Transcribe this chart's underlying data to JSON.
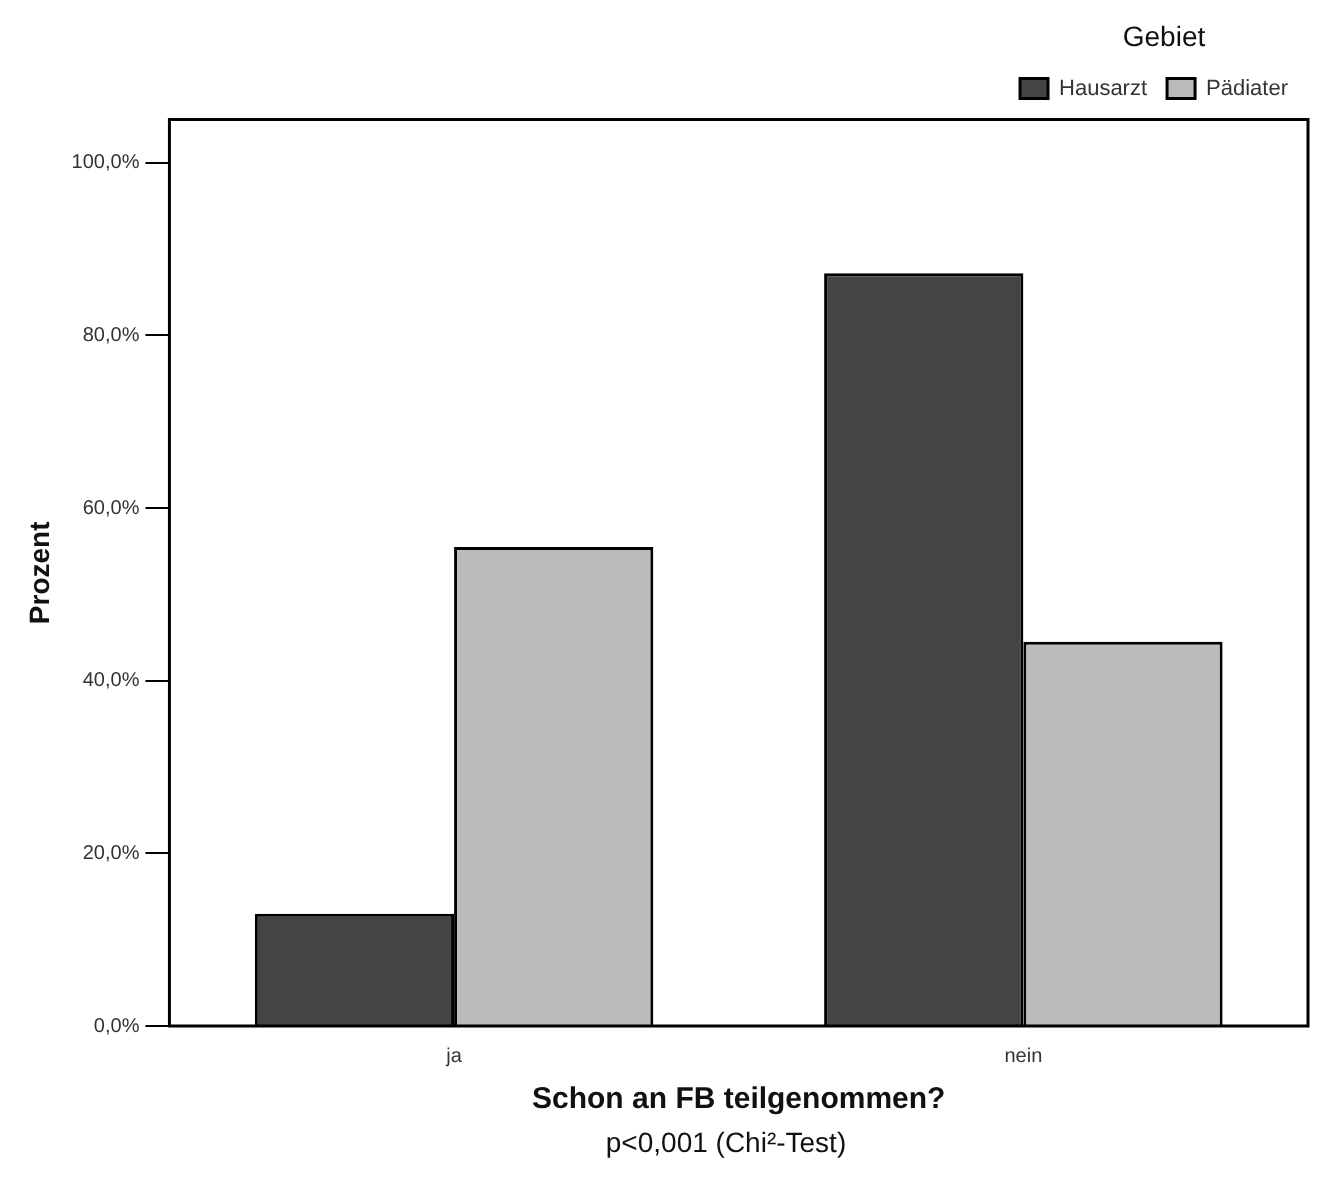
{
  "chart_data": {
    "type": "bar",
    "xlabel": "Schon an FB teilgenommen?",
    "ylabel": "Prozent",
    "legend_title": "Gebiet",
    "annotations": [
      "p<0,001 (Chi²-Test)"
    ],
    "categories": [
      "ja",
      "nein"
    ],
    "series": [
      {
        "name": "Hausarzt",
        "color": "#444444",
        "values": [
          13.0,
          87.2
        ]
      },
      {
        "name": "Pädiater",
        "color": "#bbbbbb",
        "values": [
          55.5,
          44.5
        ]
      }
    ],
    "ylim": [
      0,
      105
    ],
    "yticks": [
      {
        "value": 0,
        "label": "0,0%"
      },
      {
        "value": 20,
        "label": "20,0%"
      },
      {
        "value": 40,
        "label": "40,0%"
      },
      {
        "value": 60,
        "label": "60,0%"
      },
      {
        "value": 80,
        "label": "80,0%"
      },
      {
        "value": 100,
        "label": "100,0%"
      }
    ],
    "grid": false,
    "legend": "top right"
  }
}
